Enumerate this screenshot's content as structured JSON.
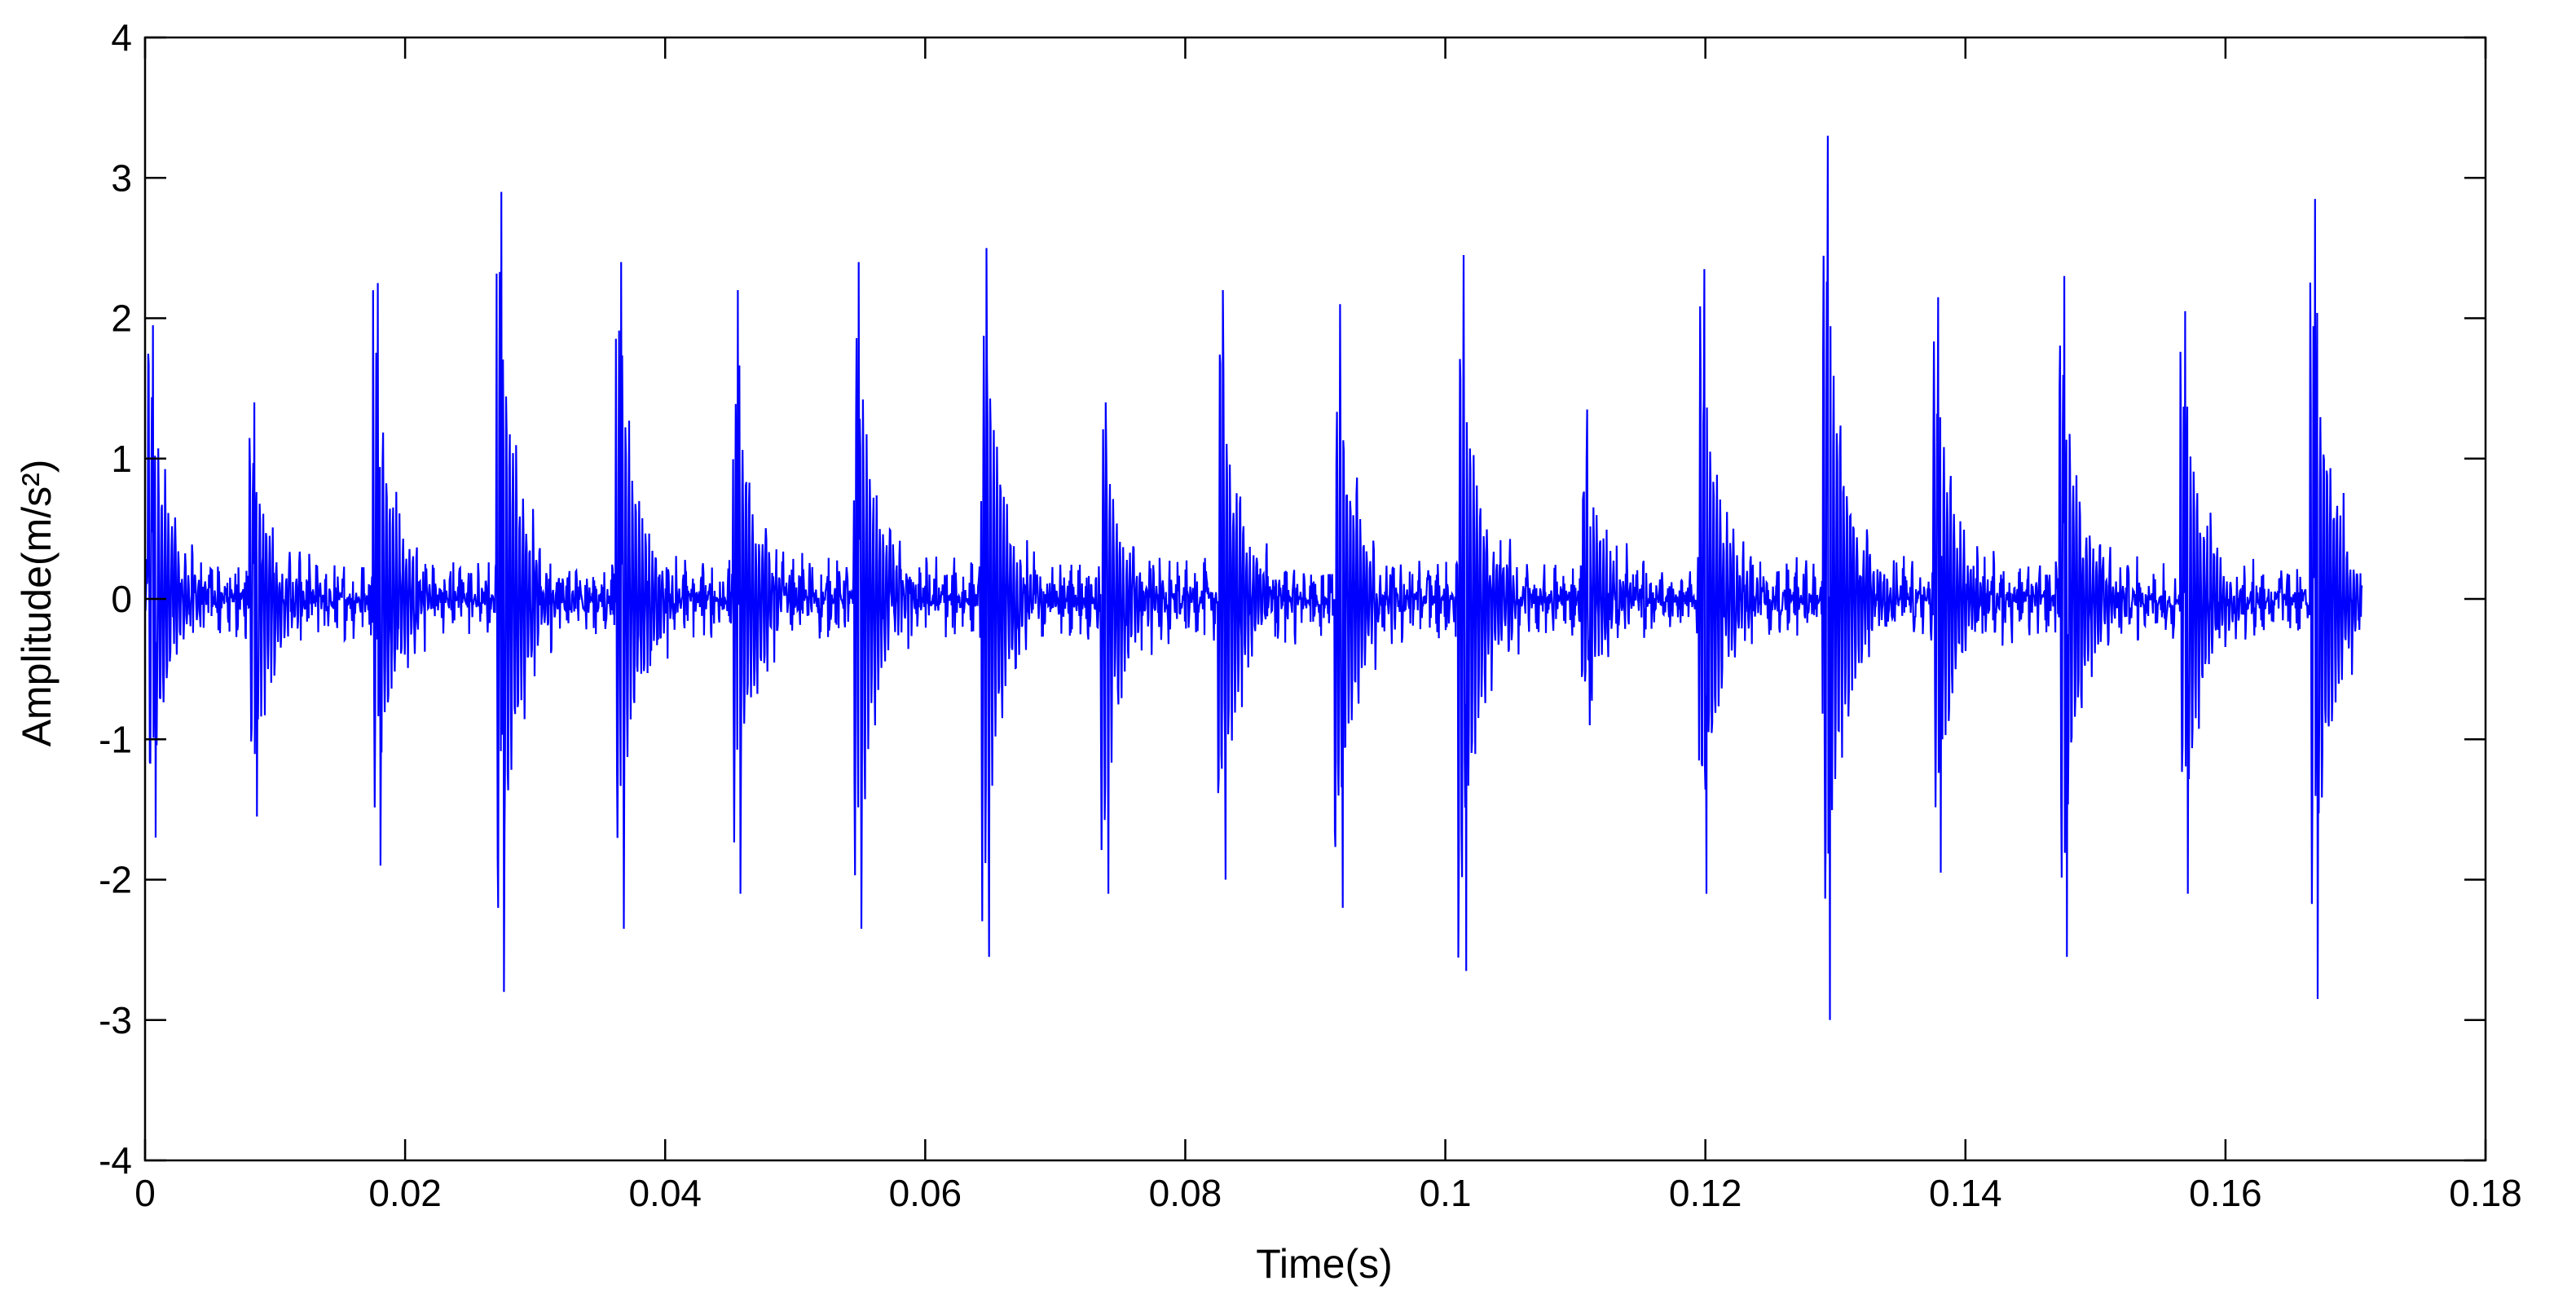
{
  "chart_data": {
    "type": "line",
    "title": "",
    "xlabel": "Time(s)",
    "ylabel": "Amplitude(m/s²)",
    "xlim": [
      0,
      0.18
    ],
    "ylim": [
      -4,
      4
    ],
    "xticks": [
      0,
      0.02,
      0.04,
      0.06,
      0.08,
      0.1,
      0.12,
      0.14,
      0.16,
      0.18
    ],
    "xtick_labels": [
      "0",
      "0.02",
      "0.04",
      "0.06",
      "0.08",
      "0.1",
      "0.12",
      "0.14",
      "0.16",
      "0.18"
    ],
    "yticks": [
      -4,
      -3,
      -2,
      -1,
      0,
      1,
      2,
      3,
      4
    ],
    "ytick_labels": [
      "-4",
      "-3",
      "-2",
      "-1",
      "0",
      "1",
      "2",
      "3",
      "4"
    ],
    "grid": false,
    "legend": "none",
    "series": [
      {
        "color": "#0000ff",
        "signal": {
          "kind": "periodic impulse vibration",
          "t_start": 0,
          "t_end": 0.1705,
          "impulse_times": [
            0.0002,
            0.008,
            0.0175,
            0.027,
            0.0362,
            0.0452,
            0.0545,
            0.0643,
            0.0735,
            0.0825,
            0.0915,
            0.101,
            0.1105,
            0.1195,
            0.129,
            0.1375,
            0.1472,
            0.1565,
            0.1665
          ],
          "impulse_peaks_pos": [
            1.95,
            1.4,
            2.25,
            2.9,
            2.4,
            2.2,
            2.4,
            2.5,
            1.4,
            2.2,
            2.1,
            2.45,
            1.35,
            2.35,
            3.3,
            2.15,
            2.3,
            2.05,
            2.85
          ],
          "impulse_peaks_neg": [
            -1.7,
            -1.55,
            -1.9,
            -2.8,
            -2.35,
            -2.1,
            -2.35,
            -2.55,
            -2.1,
            -2.0,
            -2.2,
            -2.65,
            -0.9,
            -2.1,
            -3.0,
            -1.95,
            -2.55,
            -2.1,
            -2.85
          ],
          "noise_amplitude": 0.3
        }
      }
    ]
  }
}
